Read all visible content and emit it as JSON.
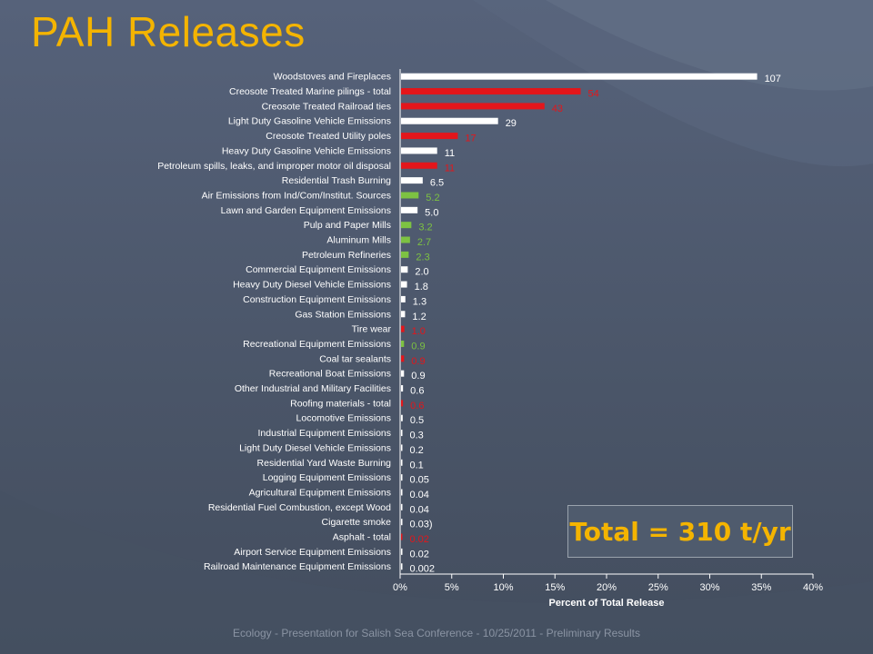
{
  "slide": {
    "title": "PAH Releases",
    "footer": "Ecology - Presentation for Salish Sea Conference - 10/25/2011 - Preliminary Results",
    "total_label": "Total = 310 t/yr"
  },
  "colors": {
    "background": "#4e5a6b",
    "title": "#f4b400",
    "white_bar": "#ffffff",
    "red_bar": "#e3161b",
    "green_bar": "#7dc242"
  },
  "chart_data": {
    "type": "bar",
    "orientation": "horizontal",
    "xlabel": "Percent of Total Release",
    "xlim": [
      0,
      40
    ],
    "x_ticks": [
      "0%",
      "5%",
      "10%",
      "15%",
      "20%",
      "25%",
      "30%",
      "35%",
      "40%"
    ],
    "grid": false,
    "categories": [
      "Woodstoves and Fireplaces",
      "Creosote Treated Marine pilings - total",
      "Creosote Treated Railroad ties",
      "Light Duty Gasoline Vehicle Emissions",
      "Creosote Treated Utility poles",
      "Heavy Duty Gasoline Vehicle Emissions",
      "Petroleum spills, leaks, and improper motor oil disposal",
      "Residential Trash Burning",
      "Air Emissions from Ind/Com/Institut. Sources",
      "Lawn and Garden Equipment Emissions",
      "Pulp and Paper Mills",
      "Aluminum Mills",
      "Petroleum Refineries",
      "Commercial Equipment Emissions",
      "Heavy Duty Diesel Vehicle Emissions",
      "Construction Equipment Emissions",
      "Gas Station Emissions",
      "Tire wear",
      "Recreational Equipment Emissions",
      "Coal tar sealants",
      "Recreational Boat Emissions",
      "Other Industrial and Military Facilities",
      "Roofing materials - total",
      "Locomotive Emissions",
      "Industrial Equipment Emissions",
      "Light Duty Diesel Vehicle Emissions",
      "Residential Yard Waste Burning",
      "Logging Equipment Emissions",
      "Agricultural Equipment Emissions",
      "Residential Fuel Combustion, except Wood",
      "Cigarette smoke",
      "Asphalt - total",
      "Airport Service Equipment Emissions",
      "Railroad Maintenance Equipment Emissions"
    ],
    "values_percent": [
      34.5,
      17.4,
      13.9,
      9.4,
      5.5,
      3.5,
      3.5,
      2.1,
      1.7,
      1.6,
      1.0,
      0.87,
      0.74,
      0.65,
      0.58,
      0.42,
      0.39,
      0.32,
      0.29,
      0.29,
      0.29,
      0.19,
      0.19,
      0.16,
      0.1,
      0.06,
      0.03,
      0.02,
      0.01,
      0.01,
      0.01,
      0.01,
      0.01,
      0.001
    ],
    "labels": [
      "107",
      "54",
      "43",
      "29",
      "17",
      "11",
      "11",
      "6.5",
      "5.2",
      "5.0",
      "3.2",
      "2.7",
      "2.3",
      "2.0",
      "1.8",
      "1.3",
      "1.2",
      "1.0",
      "0.9",
      "0.9",
      "0.9",
      "0.6",
      "0.6",
      "0.5",
      "0.3",
      "0.2",
      "0.1",
      "0.05",
      "0.04",
      "0.04",
      "0.03)",
      "0.02",
      "0.02",
      "0.002"
    ],
    "bar_colors": [
      "white",
      "red",
      "red",
      "white",
      "red",
      "white",
      "red",
      "white",
      "green",
      "white",
      "green",
      "green",
      "green",
      "white",
      "white",
      "white",
      "white",
      "red",
      "green",
      "red",
      "white",
      "white",
      "red",
      "white",
      "white",
      "white",
      "white",
      "white",
      "white",
      "white",
      "white",
      "red",
      "white",
      "white"
    ]
  }
}
